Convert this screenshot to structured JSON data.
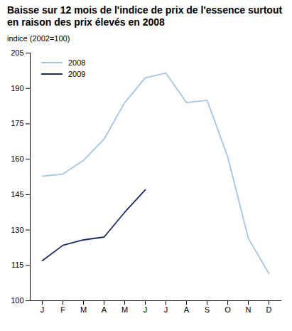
{
  "chart_data": {
    "type": "line",
    "title": "Baisse sur 12 mois de l'indice de prix de l'essence surtout en raison des prix élevés en 2008",
    "ylabel": "indice (2002=100)",
    "categories": [
      "J",
      "F",
      "M",
      "A",
      "M",
      "J",
      "J",
      "A",
      "S",
      "O",
      "N",
      "D"
    ],
    "series": [
      {
        "name": "2008",
        "color": "#a3c6e6",
        "values": [
          152.8,
          153.7,
          159.5,
          168.5,
          184.0,
          194.5,
          196.5,
          184.0,
          185.0,
          161.0,
          126.5,
          111.5
        ]
      },
      {
        "name": "2009",
        "color": "#1b2a6b",
        "values": [
          117.0,
          123.5,
          125.8,
          127.0,
          137.5,
          147.0,
          null,
          null,
          null,
          null,
          null,
          null
        ]
      }
    ],
    "ylim": [
      100,
      205
    ],
    "yticks": [
      100,
      115,
      130,
      145,
      160,
      175,
      190,
      205
    ],
    "grid": false,
    "legend": "top-left"
  }
}
